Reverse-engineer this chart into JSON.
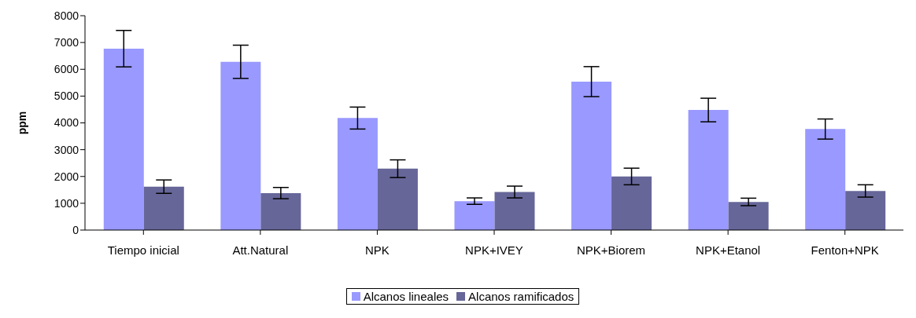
{
  "chart_data": {
    "type": "bar",
    "ylabel": "ppm",
    "categories": [
      "Tiempo inicial",
      "Att.Natural",
      "NPK",
      "NPK+IVEY",
      "NPK+Biorem",
      "NPK+Etanol",
      "Fenton+NPK"
    ],
    "series": [
      {
        "name": "Alcanos lineales",
        "color": "#9999ff",
        "values": [
          6770,
          6280,
          4180,
          1080,
          5540,
          4480,
          3770
        ],
        "errors": [
          680,
          620,
          410,
          120,
          560,
          440,
          375
        ]
      },
      {
        "name": "Alcanos ramificados",
        "color": "#666699",
        "values": [
          1620,
          1380,
          2290,
          1420,
          2000,
          1050,
          1460
        ],
        "errors": [
          250,
          210,
          330,
          220,
          310,
          140,
          230
        ]
      }
    ],
    "ylim": [
      0,
      8000
    ],
    "yticks": [
      0,
      1000,
      2000,
      3000,
      4000,
      5000,
      6000,
      7000,
      8000
    ],
    "grid": false,
    "legend": "bottom"
  }
}
